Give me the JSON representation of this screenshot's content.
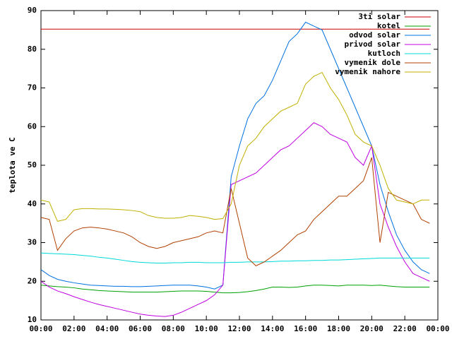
{
  "chart_data": {
    "type": "line",
    "y_label": "teplota ve C",
    "x": [
      0,
      0.5,
      1,
      1.5,
      2,
      2.5,
      3,
      3.5,
      4,
      4.5,
      5,
      5.5,
      6,
      6.5,
      7,
      7.5,
      8,
      8.5,
      9,
      9.5,
      10,
      10.5,
      11,
      11.5,
      12,
      12.5,
      13,
      13.5,
      14,
      14.5,
      15,
      15.5,
      16,
      16.5,
      17,
      17.5,
      18,
      18.5,
      19,
      19.5,
      20,
      20.5,
      21,
      21.5,
      22,
      22.5,
      23,
      23.5
    ],
    "xlim": [
      0,
      24
    ],
    "xticks": [
      {
        "value": 0,
        "label": "00:00"
      },
      {
        "value": 2,
        "label": "02:00"
      },
      {
        "value": 4,
        "label": "04:00"
      },
      {
        "value": 6,
        "label": "06:00"
      },
      {
        "value": 8,
        "label": "08:00"
      },
      {
        "value": 10,
        "label": "10:00"
      },
      {
        "value": 12,
        "label": "12:00"
      },
      {
        "value": 14,
        "label": "14:00"
      },
      {
        "value": 16,
        "label": "16:00"
      },
      {
        "value": 18,
        "label": "18:00"
      },
      {
        "value": 20,
        "label": "20:00"
      },
      {
        "value": 22,
        "label": "22:00"
      },
      {
        "value": 24,
        "label": "00:00"
      }
    ],
    "ylim": [
      10,
      90
    ],
    "yticks": [
      10,
      20,
      30,
      40,
      50,
      60,
      70,
      80,
      90
    ],
    "grid": false,
    "legend": "top-right",
    "series": [
      {
        "name": "3ti solar",
        "color": "#cc0000",
        "values": [
          85.2,
          85.2,
          85.2,
          85.2,
          85.2,
          85.2,
          85.2,
          85.2,
          85.2,
          85.2,
          85.2,
          85.2,
          85.2,
          85.2,
          85.2,
          85.2,
          85.2,
          85.2,
          85.2,
          85.2,
          85.2,
          85.2,
          85.2,
          85.2,
          85.2,
          85.2,
          85.2,
          85.2,
          85.2,
          85.2,
          85.2,
          85.2,
          85.2,
          85.2,
          85.2,
          85.2,
          85.2,
          85.2,
          85.2,
          85.2,
          85.2,
          85.2,
          85.2,
          85.2,
          85.2,
          85.2,
          85.2,
          85.2
        ]
      },
      {
        "name": "kotel",
        "color": "#00a000",
        "values": [
          19,
          18.8,
          18.6,
          18.5,
          18.3,
          18,
          17.8,
          17.6,
          17.5,
          17.4,
          17.3,
          17.2,
          17.2,
          17.2,
          17.2,
          17.3,
          17.4,
          17.5,
          17.5,
          17.5,
          17.4,
          17.2,
          17,
          17,
          17.1,
          17.3,
          17.6,
          18,
          18.5,
          18.5,
          18.4,
          18.5,
          18.8,
          19,
          19,
          18.9,
          18.8,
          19,
          19,
          19,
          18.9,
          19,
          18.8,
          18.6,
          18.5,
          18.5,
          18.5,
          18.5
        ]
      },
      {
        "name": "odvod solar",
        "color": "#0070e0",
        "values": [
          23,
          21.5,
          20.5,
          20,
          19.6,
          19.3,
          19,
          18.9,
          18.8,
          18.7,
          18.7,
          18.6,
          18.6,
          18.7,
          18.8,
          18.9,
          19,
          19,
          19,
          18.8,
          18.5,
          18,
          19,
          47,
          55,
          62,
          66,
          68,
          72,
          77,
          82,
          84,
          87,
          86,
          85,
          80,
          75,
          70,
          65,
          60,
          55,
          45,
          38,
          32,
          28,
          25,
          23,
          22
        ]
      },
      {
        "name": "privod solar",
        "color": "#c000e0",
        "values": [
          20,
          18.5,
          17.5,
          16.8,
          16,
          15.3,
          14.6,
          14,
          13.5,
          13,
          12.5,
          12,
          11.5,
          11.2,
          11,
          10.9,
          11.2,
          12,
          13,
          14,
          15,
          16.5,
          19,
          45,
          46,
          47,
          48,
          50,
          52,
          54,
          55,
          57,
          59,
          61,
          60,
          58,
          57,
          56,
          52,
          50,
          55,
          40,
          34,
          29,
          25,
          22,
          21,
          20
        ]
      },
      {
        "name": "kutloch",
        "color": "#00d8d8",
        "values": [
          27.3,
          27.2,
          27.1,
          27,
          26.9,
          26.7,
          26.5,
          26.2,
          26,
          25.7,
          25.4,
          25.1,
          24.9,
          24.8,
          24.7,
          24.7,
          24.8,
          24.8,
          24.9,
          24.9,
          24.8,
          24.8,
          24.8,
          24.9,
          24.9,
          25,
          25,
          25,
          25.1,
          25.2,
          25.2,
          25.3,
          25.3,
          25.4,
          25.4,
          25.5,
          25.5,
          25.6,
          25.7,
          25.8,
          25.9,
          26,
          26,
          26,
          26,
          26,
          26,
          26
        ]
      },
      {
        "name": "vymenik dole",
        "color": "#b04000",
        "values": [
          36.5,
          36,
          28,
          31,
          33,
          33.8,
          34,
          33.8,
          33.5,
          33,
          32.5,
          31.5,
          30,
          29,
          28.5,
          29,
          30,
          30.5,
          31,
          31.5,
          32.5,
          33,
          32.5,
          44,
          35,
          26,
          24,
          25,
          26.5,
          28,
          30,
          32,
          33,
          36,
          38,
          40,
          42,
          42,
          44,
          46,
          52,
          30,
          43,
          42,
          41,
          40,
          36,
          35
        ]
      },
      {
        "name": "vymenik nahore",
        "color": "#c0b000",
        "values": [
          41,
          40.5,
          35.5,
          36,
          38.5,
          38.8,
          38.8,
          38.7,
          38.7,
          38.6,
          38.5,
          38.3,
          38,
          37,
          36.5,
          36.3,
          36.3,
          36.5,
          37,
          36.8,
          36.5,
          36,
          36.2,
          40,
          50,
          55,
          57,
          60,
          62,
          64,
          65,
          66,
          71,
          73,
          74,
          70,
          67,
          63,
          58,
          56,
          55,
          50,
          44,
          41,
          40.5,
          40,
          41,
          41
        ]
      }
    ]
  }
}
